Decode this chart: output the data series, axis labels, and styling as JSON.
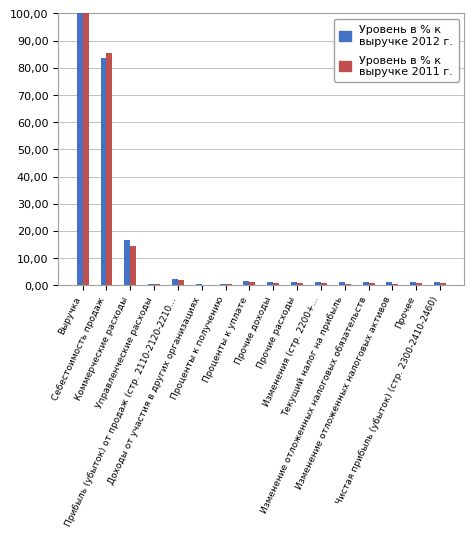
{
  "categories": [
    "Выручка",
    "Себестоимость продаж",
    "Коммерческие расходы",
    "Управленческие расходы",
    "Прибыль (убыток) от продаж (стр. 2110-2120-2210...",
    "Доходы от участия в других организациях",
    "Проценты к получению",
    "Проценты к уплате",
    "Прочие доходы",
    "Прочие расходы",
    "Изменения (стр. 2200+...",
    "Текущий налог на прибыль",
    "Изменение отложенных налоговых обязательств",
    "Изменение отложенных налоговых активов",
    "Прочее",
    "Чистая прибыль (убыток) (стр. 2300-2410-2460)"
  ],
  "values_2012": [
    100.0,
    83.5,
    16.5,
    0.4,
    2.2,
    0.3,
    0.5,
    1.7,
    1.3,
    1.3,
    1.3,
    1.0,
    1.0,
    1.0,
    1.3,
    1.3
  ],
  "values_2011": [
    100.0,
    85.5,
    14.5,
    0.3,
    1.8,
    0.2,
    0.3,
    1.3,
    0.8,
    0.8,
    0.8,
    0.5,
    0.8,
    0.5,
    0.8,
    0.8
  ],
  "color_2012": "#4472C4",
  "color_2011": "#C0504D",
  "legend_2012": "Уровень в % к\nвыручке 2012 г.",
  "legend_2011": "Уровень в % к\nвыручке 2011 г.",
  "ylim": [
    0,
    100
  ],
  "yticks": [
    0,
    10,
    20,
    30,
    40,
    50,
    60,
    70,
    80,
    90,
    100
  ],
  "background_color": "#ffffff",
  "grid_color": "#c0c0c0",
  "bar_width": 0.25,
  "label_fontsize": 6.5,
  "tick_fontsize": 8,
  "legend_fontsize": 8
}
